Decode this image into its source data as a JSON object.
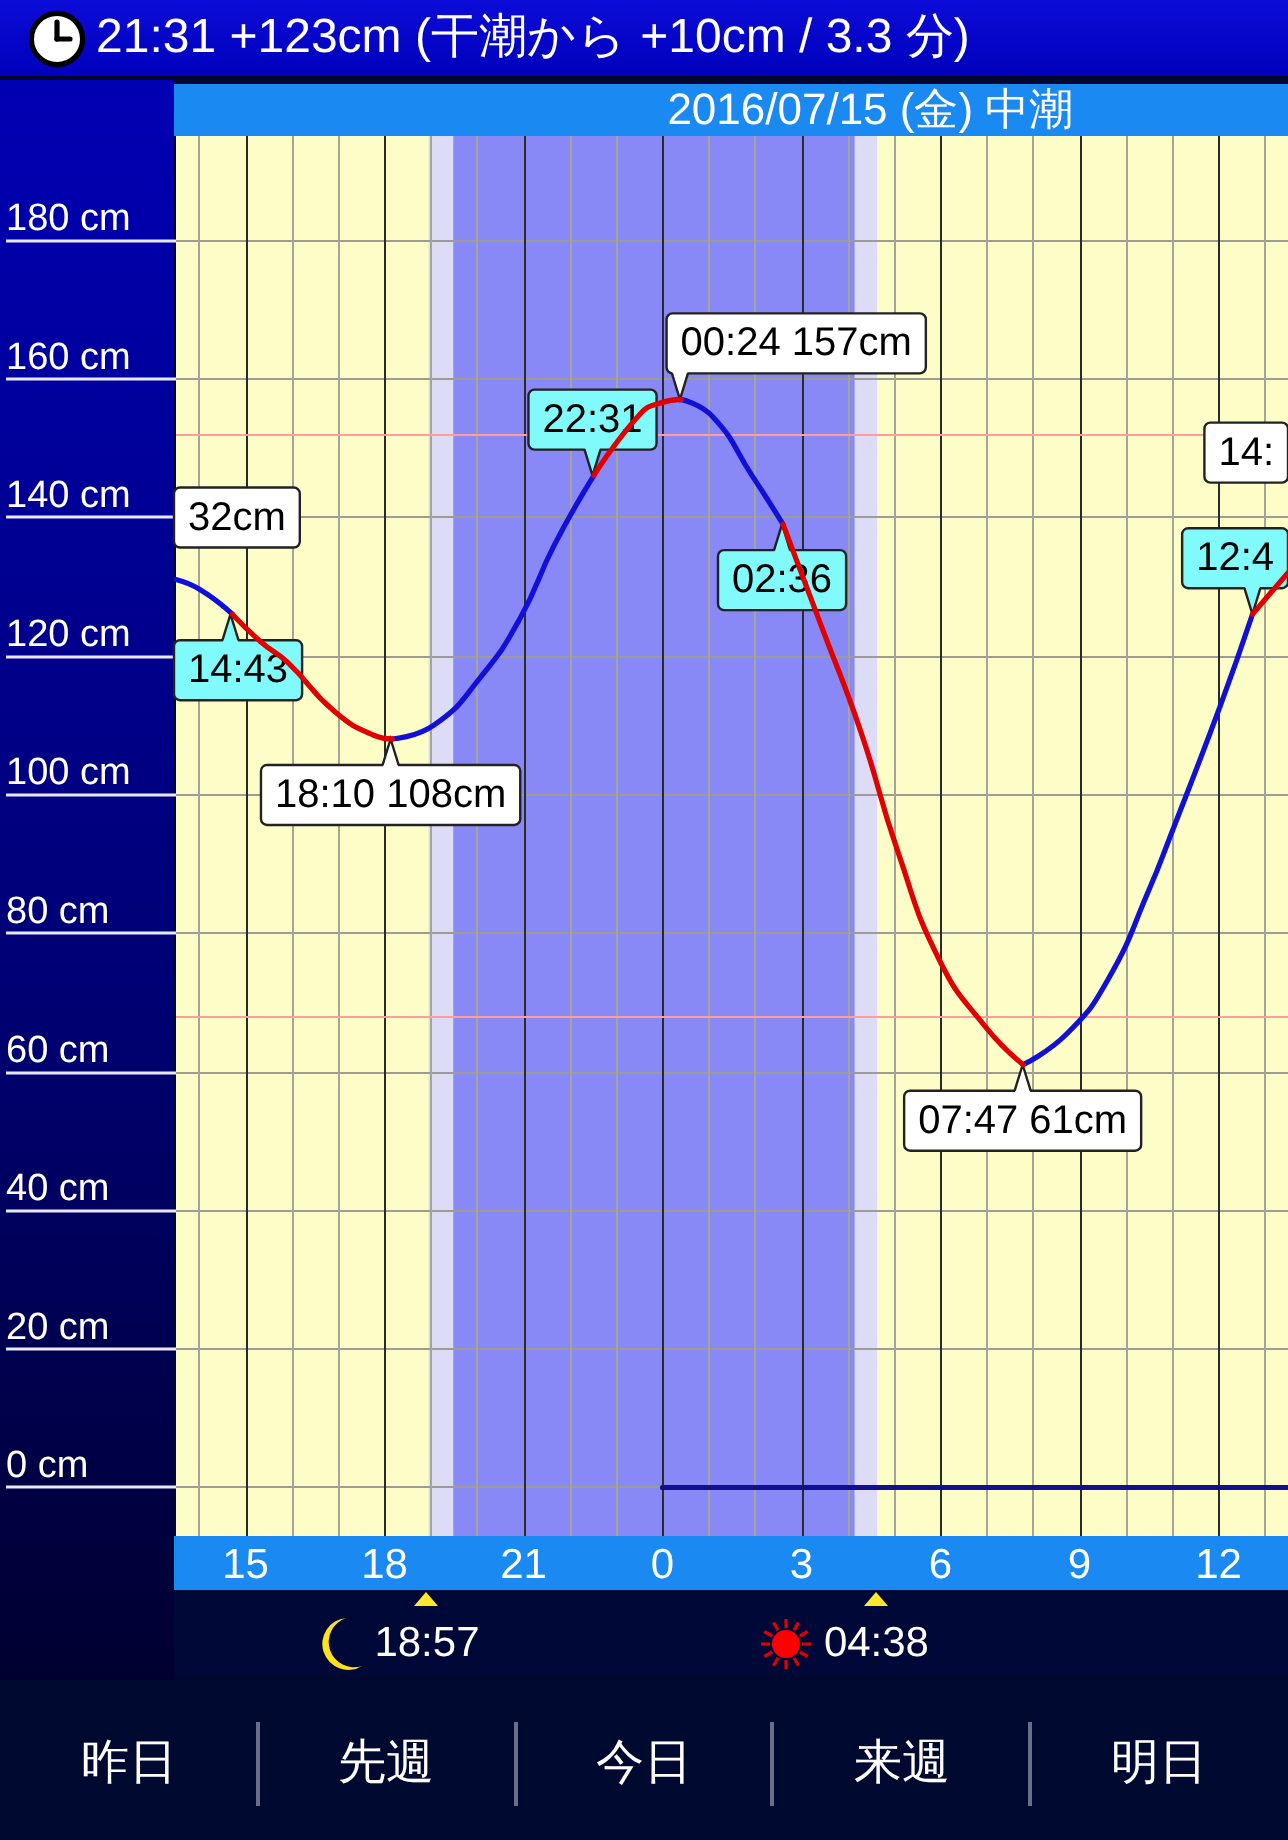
{
  "chart_data": [
    {
      "type": "line",
      "title": "21:31 +123cm (干潮から +10cm / 3.3 分)",
      "subtitle": "2016/07/15 (金) 中潮",
      "x": [
        "2016-07-14T13:30",
        "2016-07-14T14:02",
        "2016-07-14T14:43",
        "2016-07-14T15:20",
        "2016-07-14T15:55",
        "2016-07-14T16:55",
        "2016-07-14T17:47",
        "2016-07-14T18:10",
        "2016-07-14T19:04",
        "2016-07-14T20:05",
        "2016-07-14T20:56",
        "2016-07-14T21:40",
        "2016-07-14T22:31",
        "2016-07-14T23:32",
        "2016-07-14T23:58",
        "2016-07-15T00:24",
        "2016-07-15T01:05",
        "2016-07-15T01:56",
        "2016-07-15T02:36",
        "2016-07-15T03:25",
        "2016-07-15T04:17",
        "2016-07-15T05:04",
        "2016-07-15T05:59",
        "2016-07-15T06:58",
        "2016-07-15T07:47",
        "2016-07-15T08:44",
        "2016-07-15T09:38",
        "2016-07-15T10:31",
        "2016-07-15T10:56",
        "2016-07-15T12:03",
        "2016-07-15T12:44",
        "2016-07-15T13:30"
      ],
      "series": [
        {
          "color": "#1010d8",
          "values": [
            131,
            129.5,
            126,
            null,
            null,
            null,
            null,
            108,
            110,
            117,
            125.5,
            136,
            146,
            null,
            null,
            157,
            154.5,
            146,
            139,
            null,
            null,
            null,
            null,
            null,
            61,
            65.5,
            73.5,
            86.5,
            93.5,
            113,
            126,
            null
          ]
        },
        {
          "color": "#e00000",
          "values": [
            null,
            null,
            126,
            122,
            119,
            112,
            108.5,
            108,
            null,
            null,
            null,
            null,
            146,
            155,
            156.5,
            157,
            null,
            null,
            139,
            124.5,
            109,
            92,
            76,
            66.5,
            61,
            null,
            null,
            null,
            null,
            null,
            126,
            132
          ]
        },
        {
          "color": "#101090",
          "x": [
            "2016-07-15T00:00",
            "2016-07-15T13:30"
          ],
          "values": [
            0,
            0
          ]
        }
      ],
      "xlim": [
        "2016-07-14T13:30",
        "2016-07-15T13:30"
      ],
      "xticks": [
        {
          "value": "2016-07-14T14:00",
          "label": null
        },
        {
          "value": "2016-07-14T15:00",
          "label": "15"
        },
        {
          "value": "2016-07-14T16:00",
          "label": null
        },
        {
          "value": "2016-07-14T17:00",
          "label": null
        },
        {
          "value": "2016-07-14T18:00",
          "label": "18"
        },
        {
          "value": "2016-07-14T19:00",
          "label": null
        },
        {
          "value": "2016-07-14T20:00",
          "label": null
        },
        {
          "value": "2016-07-14T21:00",
          "label": "21"
        },
        {
          "value": "2016-07-14T22:00",
          "label": null
        },
        {
          "value": "2016-07-14T23:00",
          "label": null
        },
        {
          "value": "2016-07-15T00:00",
          "label": "0"
        },
        {
          "value": "2016-07-15T01:00",
          "label": null
        },
        {
          "value": "2016-07-15T02:00",
          "label": null
        },
        {
          "value": "2016-07-15T03:00",
          "label": "3"
        },
        {
          "value": "2016-07-15T04:00",
          "label": null
        },
        {
          "value": "2016-07-15T05:00",
          "label": null
        },
        {
          "value": "2016-07-15T06:00",
          "label": "6"
        },
        {
          "value": "2016-07-15T07:00",
          "label": null
        },
        {
          "value": "2016-07-15T08:00",
          "label": null
        },
        {
          "value": "2016-07-15T09:00",
          "label": "9"
        },
        {
          "value": "2016-07-15T10:00",
          "label": null
        },
        {
          "value": "2016-07-15T11:00",
          "label": null
        },
        {
          "value": "2016-07-15T12:00",
          "label": "12"
        },
        {
          "value": "2016-07-15T13:00",
          "label": null
        }
      ],
      "ylim": [
        -7,
        195
      ],
      "yticks": [
        {
          "value": 0,
          "label": "0 cm"
        },
        {
          "value": 20,
          "label": "20 cm"
        },
        {
          "value": 40,
          "label": "40 cm"
        },
        {
          "value": 60,
          "label": "60 cm"
        },
        {
          "value": 80,
          "label": "80 cm"
        },
        {
          "value": 100,
          "label": "100 cm"
        },
        {
          "value": 120,
          "label": "120 cm"
        },
        {
          "value": 140,
          "label": "140 cm"
        },
        {
          "value": 160,
          "label": "160 cm"
        },
        {
          "value": 180,
          "label": "180 cm"
        }
      ],
      "grid": true,
      "marker": "none",
      "ref_lines": [
        {
          "axis": "y",
          "value": 152,
          "color": "#ff9c9c"
        },
        {
          "axis": "y",
          "value": 68,
          "color": "#ff9c9c"
        }
      ],
      "bands": [
        {
          "axis": "x",
          "from": "2016-07-14T18:57",
          "to": "2016-07-14T19:29",
          "color": "#dcdcf6",
          "label": "18:57"
        },
        {
          "axis": "x",
          "from": "2016-07-14T19:29",
          "to": "2016-07-15T04:09",
          "color": "#8888f6"
        },
        {
          "axis": "x",
          "from": "2016-07-15T04:09",
          "to": "2016-07-15T04:38",
          "color": "#dcdcf6",
          "label": "04:38"
        }
      ],
      "annotations": [
        {
          "text": "14:43",
          "x": "2016-07-14T14:43",
          "y": 126
        },
        {
          "text": "18:10 108cm",
          "x": "2016-07-14T18:10",
          "y": 108
        },
        {
          "text": "22:31",
          "x": "2016-07-14T22:31",
          "y": 146
        },
        {
          "text": "00:24 157cm",
          "x": "2016-07-15T00:24",
          "y": 157
        },
        {
          "text": "02:36",
          "x": "2016-07-15T02:36",
          "y": 139
        },
        {
          "text": "07:47 61cm",
          "x": "2016-07-15T07:47",
          "y": 61
        },
        {
          "text": "12:4",
          "x": "2016-07-15T12:44",
          "y": 126
        },
        "32cm",
        "14:"
      ]
    },
    {
      "type": "other",
      "annotations": [
        "昨日",
        "先週",
        "今日",
        "来週",
        "明日"
      ]
    }
  ]
}
